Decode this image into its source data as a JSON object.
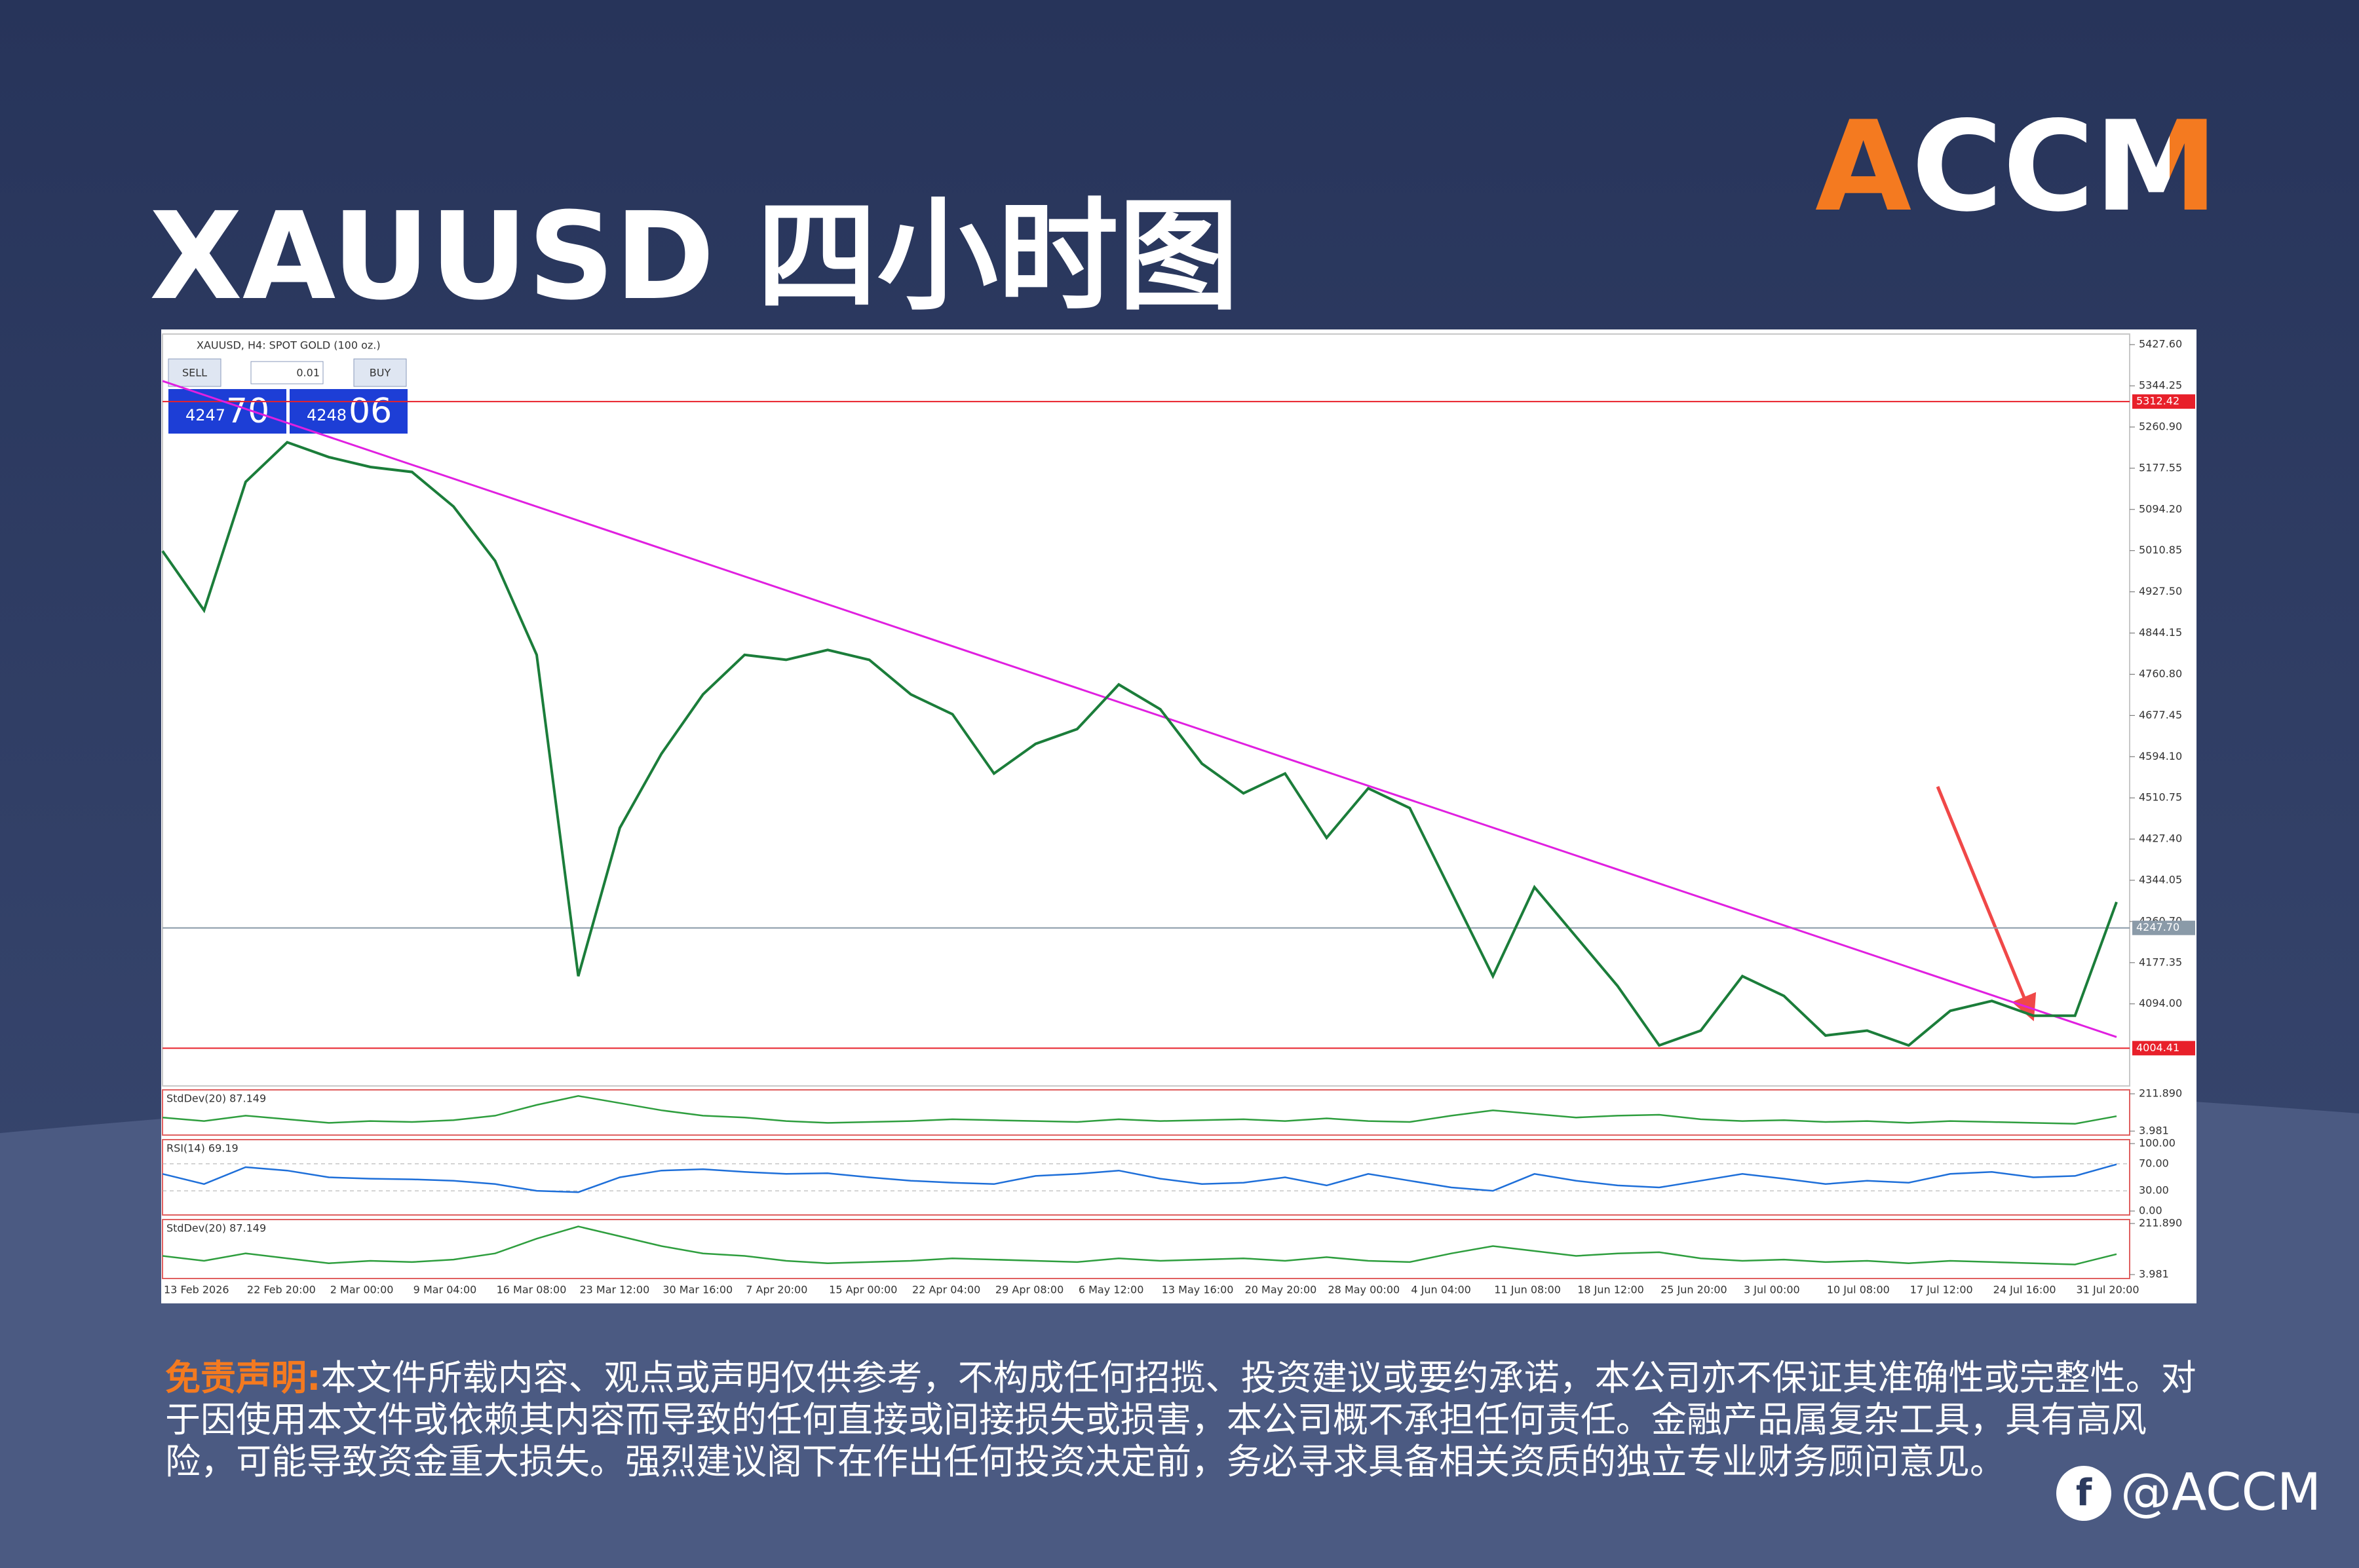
{
  "page": {
    "title": "XAUUSD 四小时图",
    "logo": "ACCM",
    "disclaimer_label": "免责声明:",
    "disclaimer": "本文件所载内容、观点或声明仅供参考，不构成任何招揽、投资建议或要约承诺，本公司亦不保证其准确性或完整性。对于因使用本文件或依赖其内容而导致的任何直接或间接损失或损害，本公司概不承担任何责任。金融产品属复杂工具，具有高风险，可能导致资金重大损失。强烈建议阁下在作出任何投资决定前，务必寻求具备相关资质的独立专业财务顾问意见。",
    "social": "@ACCM"
  },
  "trade_panel": {
    "sell": "SELL",
    "lot": "0.01",
    "buy": "BUY",
    "bid": "4247",
    "bid_pips": "70",
    "ask": "4248",
    "ask_pips": "06"
  },
  "chart_data": {
    "type": "line",
    "title": "XAUUSD, H4: SPOT GOLD (100 oz.)",
    "color": "#1b7d3a",
    "categories": [
      "13 Feb 2026",
      null,
      "22 Feb 20:00",
      null,
      "2 Mar 00:00",
      null,
      "9 Mar 04:00",
      null,
      "16 Mar 08:00",
      null,
      "23 Mar 12:00",
      null,
      "30 Mar 16:00",
      null,
      "7 Apr 20:00",
      null,
      "15 Apr 00:00",
      null,
      "22 Apr 04:00",
      null,
      "29 Apr 08:00",
      null,
      "6 May 12:00",
      null,
      "13 May 16:00",
      null,
      "20 May 20:00",
      null,
      "28 May 00:00",
      null,
      "4 Jun 04:00",
      null,
      "11 Jun 08:00",
      null,
      "18 Jun 12:00",
      null,
      "25 Jun 20:00",
      null,
      "3 Jul 00:00",
      null,
      "10 Jul 08:00",
      null,
      "17 Jul 12:00",
      null,
      "24 Jul 16:00",
      null,
      "31 Jul 20:00",
      null
    ],
    "values": [
      5010,
      4890,
      5150,
      5230,
      5200,
      5180,
      5170,
      5100,
      4990,
      4800,
      4150,
      4450,
      4600,
      4720,
      4800,
      4790,
      4810,
      4790,
      4720,
      4680,
      4560,
      4620,
      4650,
      4740,
      4690,
      4580,
      4520,
      4560,
      4430,
      4530,
      4490,
      4320,
      4150,
      4330,
      4230,
      4130,
      4010,
      4040,
      4150,
      4110,
      4030,
      4040,
      4010,
      4080,
      4100,
      4070,
      4070,
      4300
    ],
    "ylim": [
      3928,
      5449
    ],
    "yticks": [
      {
        "value": 5427.6,
        "label": "5427.60"
      },
      5344.25,
      {
        "value": 5260.9,
        "label": "5260.90"
      },
      5177.55,
      {
        "value": 5094.2,
        "label": "5094.20"
      },
      5010.85,
      {
        "value": 4927.5,
        "label": "4927.50"
      },
      4844.15,
      {
        "value": 4760.8,
        "label": "4760.80"
      },
      4677.45,
      {
        "value": 4594.1,
        "label": "4594.10"
      },
      4510.75,
      {
        "value": 4427.4,
        "label": "4427.40"
      },
      4344.05,
      {
        "value": 4260.7,
        "label": "4260.70"
      },
      4177.35,
      {
        "value": 4094.0,
        "label": "4094.00"
      }
    ],
    "levels": {
      "values": [
        5312.42,
        4247.7,
        4004.41
      ],
      "value_labels": [
        "5312.42",
        "4247.70",
        "4004.41"
      ],
      "colors": [
        "#e8202a",
        "#8a9aa8",
        "#e8202a"
      ]
    },
    "trendline": {
      "color": "#e020e0",
      "values": [
        5354,
        4027
      ]
    },
    "indicators": [
      {
        "title": "StdDev(20) 87.149",
        "color": "#2e9e3e",
        "ylim": [
          3.981,
          211.89
        ],
        "yticks": [
          {
            "value": 211.89,
            "label": "211.890"
          },
          3.981
        ],
        "values": [
          80,
          60,
          90,
          70,
          50,
          60,
          55,
          65,
          90,
          150,
          200,
          160,
          120,
          90,
          80,
          60,
          50,
          55,
          60,
          70,
          65,
          60,
          55,
          70,
          60,
          65,
          70,
          60,
          75,
          60,
          55,
          90,
          120,
          100,
          80,
          90,
          95,
          70,
          60,
          65,
          55,
          60,
          50,
          60,
          55,
          50,
          45,
          87.149
        ]
      },
      {
        "title": "RSI(14) 69.19",
        "color": "#1e6fd9",
        "ylim": [
          0,
          100
        ],
        "yticks": [
          {
            "value": 100,
            "label": "100.00"
          },
          {
            "value": 70,
            "label": "70.00"
          },
          {
            "value": 30,
            "label": "30.00"
          },
          {
            "value": 0,
            "label": "0.00"
          }
        ],
        "values": [
          55,
          40,
          65,
          60,
          50,
          48,
          47,
          45,
          40,
          30,
          28,
          50,
          60,
          62,
          58,
          55,
          56,
          50,
          45,
          42,
          40,
          52,
          55,
          60,
          48,
          40,
          42,
          50,
          38,
          55,
          45,
          35,
          30,
          55,
          45,
          38,
          35,
          45,
          55,
          48,
          40,
          45,
          42,
          55,
          58,
          50,
          52,
          69.19
        ]
      },
      {
        "title": "StdDev(20) 87.149",
        "color": "#2e9e3e",
        "ylim": [
          3.981,
          211.89
        ],
        "yticks": [
          {
            "value": 211.89,
            "label": "211.890"
          },
          3.981
        ],
        "values": [
          80,
          60,
          90,
          70,
          50,
          60,
          55,
          65,
          90,
          150,
          200,
          160,
          120,
          90,
          80,
          60,
          50,
          55,
          60,
          70,
          65,
          60,
          55,
          70,
          60,
          65,
          70,
          60,
          75,
          60,
          55,
          90,
          120,
          100,
          80,
          90,
          95,
          70,
          60,
          65,
          55,
          60,
          50,
          60,
          55,
          50,
          45,
          87.149
        ]
      }
    ]
  }
}
